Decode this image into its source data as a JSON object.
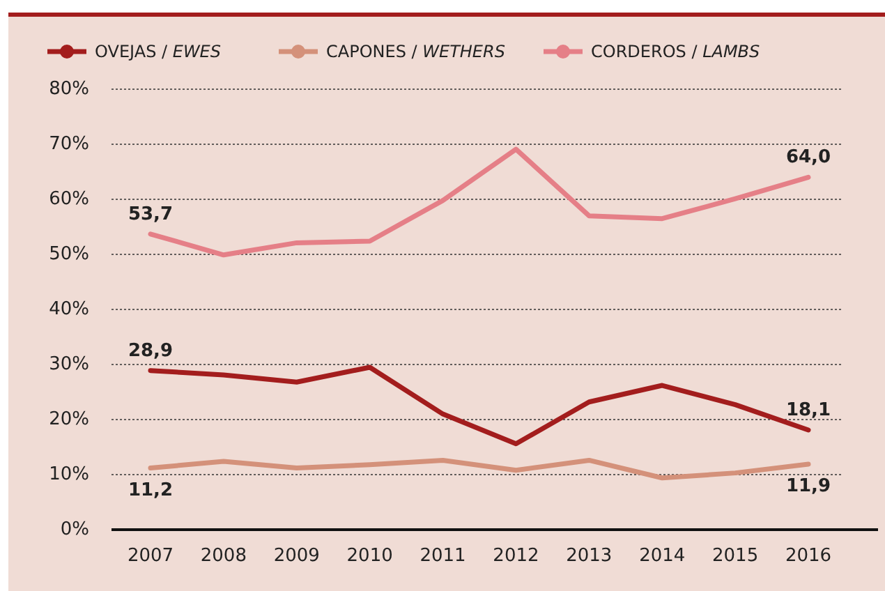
{
  "chart_data": {
    "type": "line",
    "categories": [
      "2007",
      "2008",
      "2009",
      "2010",
      "2011",
      "2012",
      "2013",
      "2014",
      "2015",
      "2016"
    ],
    "series": [
      {
        "name": "OVEJAS / EWES",
        "color": "#a31d1d",
        "values": [
          28.9,
          28.1,
          26.8,
          29.5,
          21.0,
          15.6,
          23.2,
          26.2,
          22.7,
          18.1
        ],
        "value_labels": [
          "28,9",
          null,
          null,
          null,
          null,
          null,
          null,
          null,
          null,
          "18,1"
        ]
      },
      {
        "name": "CAPONES / WETHERS",
        "color": "#d4917a",
        "values": [
          11.2,
          12.4,
          11.2,
          11.8,
          12.6,
          10.8,
          12.6,
          9.4,
          10.3,
          11.9
        ],
        "value_labels": [
          "11,2",
          null,
          null,
          null,
          null,
          null,
          null,
          null,
          null,
          "11,9"
        ]
      },
      {
        "name": "CORDEROS / LAMBS",
        "color": "#e57f87",
        "values": [
          53.7,
          49.9,
          52.1,
          52.4,
          59.8,
          69.1,
          57.0,
          56.5,
          60.1,
          64.0
        ],
        "value_labels": [
          "53,7",
          null,
          null,
          null,
          null,
          null,
          null,
          null,
          null,
          "64,0"
        ]
      }
    ],
    "ylim": [
      0,
      80
    ],
    "yticks": [
      {
        "value": 0,
        "label": "0%"
      },
      {
        "value": 10,
        "label": "10%"
      },
      {
        "value": 20,
        "label": "20%"
      },
      {
        "value": 30,
        "label": "30%"
      },
      {
        "value": 40,
        "label": "40%"
      },
      {
        "value": 50,
        "label": "50%"
      },
      {
        "value": 60,
        "label": "60%"
      },
      {
        "value": 70,
        "label": "70%"
      },
      {
        "value": 80,
        "label": "80%"
      }
    ],
    "grid": "y",
    "legend": "top",
    "marker": "none"
  }
}
